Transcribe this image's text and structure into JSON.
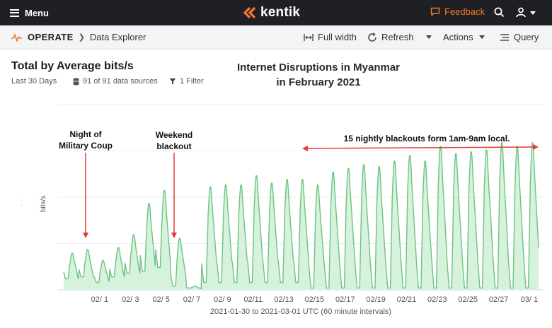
{
  "topbar": {
    "menu_label": "Menu",
    "logo_text": "kentik",
    "feedback_label": "Feedback",
    "accent": "#f3772b"
  },
  "subbar": {
    "section": "OPERATE",
    "page": "Data Explorer",
    "full_width_label": "Full width",
    "refresh_label": "Refresh",
    "actions_label": "Actions",
    "query_label": "Query"
  },
  "panel": {
    "title": "Total by Average bits/s",
    "range": "Last 30 Days",
    "sources": "91 of 91 data sources",
    "filter": "1 Filter"
  },
  "annotations": {
    "title_line1": "Internet Disruptions in Myanmar",
    "title_line2": "in February 2021",
    "coup_line1": "Night of",
    "coup_line2": "Military Coup",
    "weekend_line1": "Weekend",
    "weekend_line2": "blackout",
    "nightly": "15 nightly blackouts form 1am-9am local."
  },
  "chart_data": {
    "type": "area",
    "ylabel": "bits/s",
    "xlabel": "2021-01-30 to 2021-03-01 UTC (60 minute intervals)",
    "x_ticks": [
      "02/ 1",
      "02/ 3",
      "02/ 5",
      "02/ 7",
      "02/ 9",
      "02/11",
      "02/13",
      "02/15",
      "02/17",
      "02/19",
      "02/21",
      "02/23",
      "02/25",
      "02/27",
      "03/ 1"
    ],
    "y_tick_labels_visible": false,
    "ylim": [
      0,
      100
    ],
    "grid": true,
    "fill_color": "#d6f1dc",
    "line_color": "#6cc57f",
    "series": [
      {
        "x": [
          "01/30",
          "01/31",
          "02/01",
          "02/02",
          "02/03",
          "02/04",
          "02/05",
          "02/06",
          "02/07",
          "02/08",
          "02/09",
          "02/10",
          "02/11",
          "02/12",
          "02/13",
          "02/14",
          "02/15",
          "02/16",
          "02/17",
          "02/18",
          "02/19",
          "02/20",
          "02/21",
          "02/22",
          "02/23",
          "02/24",
          "02/25",
          "02/26",
          "02/27",
          "02/28",
          "03/01"
        ],
        "day_peak": [
          20,
          22,
          16,
          23,
          30,
          47,
          54,
          28,
          2,
          56,
          57,
          57,
          62,
          58,
          60,
          60,
          57,
          64,
          66,
          68,
          67,
          70,
          73,
          70,
          78,
          74,
          75,
          76,
          80,
          78,
          80
        ],
        "night_low": [
          6,
          7,
          4,
          7,
          9,
          10,
          12,
          2,
          1,
          4,
          4,
          4,
          4,
          4,
          4,
          4,
          1,
          1,
          1,
          1,
          1,
          1,
          1,
          1,
          1,
          1,
          1,
          1,
          1,
          1,
          1
        ]
      }
    ]
  }
}
